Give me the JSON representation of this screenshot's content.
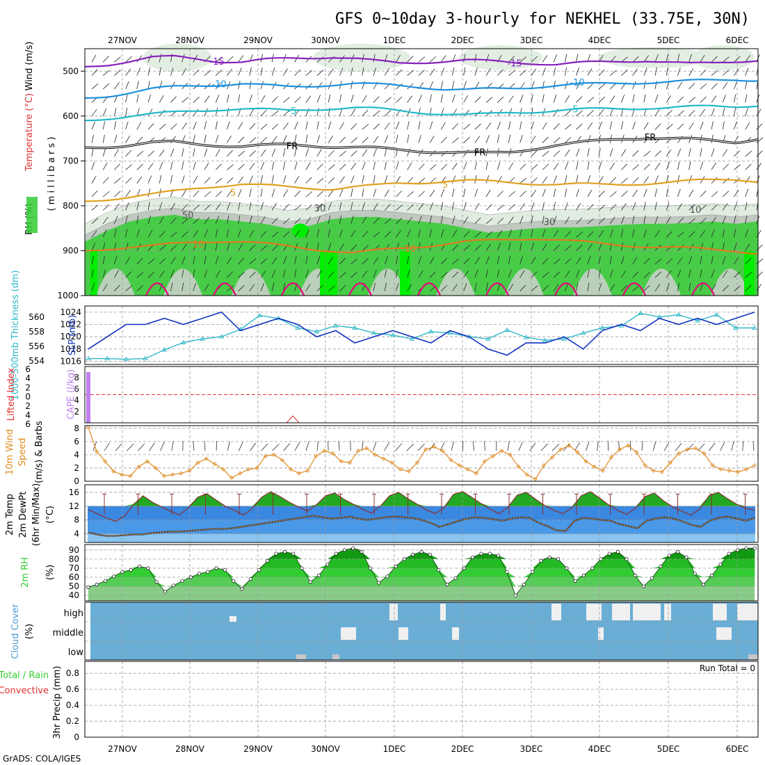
{
  "title": "GFS 0~10day 3-hourly for NEKHEL (33.75E, 30N)",
  "credit": "GrADS: COLA/IGES",
  "colors": {
    "rh_green": "#33cc33",
    "rh_bright": "#00ee00",
    "rh_grey": "#c0c8c0",
    "rh_light": "#e0ece0",
    "t_minus15": "#8822bb",
    "t_minus10": "#1e90dd",
    "t_minus5": "#22b8c8",
    "t_fr": "#000000",
    "t_plus5": "#e0a020",
    "t_plus10": "#e07a20",
    "t_plus15": "#e0107a",
    "slp": "#1030c0",
    "thickness": "#30b8c8",
    "cape": "#c080f0",
    "lifted": "#e03030",
    "wind10": "#e08a20",
    "temp_hot": "#22a822",
    "temp_band": "#3a88e0",
    "temp_light": "#8ac4f0",
    "cloud_blue": "#6aaed6",
    "cloud_grey": "#f0f0f0"
  },
  "chart_data": {
    "type": "meteogram",
    "days": [
      "27NOV",
      "28NOV",
      "29NOV",
      "30NOV",
      "1DEC",
      "2DEC",
      "3DEC",
      "4DEC",
      "5DEC",
      "6DEC"
    ],
    "panels": [
      {
        "id": "upper-air",
        "ylabel_parts": [
          "RH (%)",
          "Temperature (°C)",
          "Wind (m/s)"
        ],
        "ylabel2": "( m i l l i b a r s )",
        "yticks": [
          500,
          600,
          700,
          800,
          900,
          1000
        ],
        "yrange": [
          450,
          1000
        ],
        "contour_labels": [
          "-15",
          "-15",
          "-10",
          "-10",
          "-5",
          "-5",
          "FR",
          "FR",
          "FR",
          "5",
          "5",
          "10",
          "10",
          "30",
          "30",
          "50",
          "10"
        ],
        "isotherms": [
          {
            "name": "-15",
            "p": [
              490,
              485,
              478,
              470,
              468,
              472,
              478,
              480,
              475,
              472,
              470,
              468,
              472,
              478,
              482,
              480,
              478,
              476,
              478,
              480,
              482,
              485,
              482,
              480,
              478,
              476,
              480,
              484,
              482,
              478,
              475
            ]
          },
          {
            "name": "-10",
            "p": [
              560,
              555,
              548,
              540,
              535,
              532,
              530,
              528,
              532,
              535,
              533,
              530,
              528,
              530,
              532,
              535,
              540,
              542,
              540,
              538,
              535,
              532,
              530,
              528,
              526,
              525,
              524,
              522,
              520,
              518,
              520
            ]
          },
          {
            "name": "-5",
            "p": [
              610,
              605,
              600,
              596,
              592,
              588,
              585,
              584,
              586,
              588,
              585,
              583,
              582,
              584,
              588,
              592,
              595,
              598,
              596,
              592,
              590,
              588,
              586,
              584,
              583,
              582,
              582,
              580,
              578,
              578,
              576
            ]
          },
          {
            "name": "FR",
            "p": [
              670,
              668,
              665,
              660,
              658,
              662,
              665,
              668,
              666,
              664,
              665,
              668,
              670,
              672,
              675,
              678,
              680,
              682,
              683,
              680,
              672,
              665,
              660,
              655,
              650,
              648,
              650,
              652,
              655,
              658,
              650
            ]
          },
          {
            "name": "5",
            "p": [
              790,
              785,
              780,
              775,
              768,
              760,
              755,
              752,
              755,
              758,
              760,
              762,
              758,
              755,
              750,
              748,
              745,
              744,
              746,
              748,
              750,
              752,
              752,
              753,
              752,
              750,
              748,
              745,
              742,
              740,
              745
            ]
          },
          {
            "name": "10",
            "p": [
              900,
              895,
              892,
              890,
              885,
              880,
              878,
              880,
              885,
              890,
              895,
              900,
              905,
              900,
              895,
              890,
              885,
              880,
              878,
              875,
              872,
              875,
              880,
              885,
              888,
              890,
              892,
              895,
              898,
              900,
              905
            ]
          }
        ],
        "rh_top_p": [
          880,
          855,
          835,
          825,
          820,
          830,
          830,
          835,
          840,
          850,
          845,
          830,
          825,
          825,
          830,
          835,
          840,
          850,
          860,
          855,
          850,
          848,
          848,
          845,
          842,
          840,
          840,
          838,
          835,
          840,
          835
        ]
      },
      {
        "id": "slp-thickness",
        "ylabel_left": "1000-500mb Thickness (dm)",
        "ylabel_right": "SLP (mb)",
        "yticks_left": [
          554,
          556,
          558,
          560
        ],
        "yticks_right": [
          1016,
          1018,
          1020,
          1022,
          1024
        ],
        "slp": [
          1018,
          1020,
          1022,
          1022,
          1023,
          1022,
          1023,
          1024,
          1021,
          1022,
          1023,
          1022,
          1020,
          1021,
          1019,
          1020,
          1021,
          1020,
          1019,
          1021,
          1020,
          1018,
          1017,
          1019,
          1019,
          1020,
          1018,
          1021,
          1022,
          1021,
          1023,
          1022,
          1023,
          1022,
          1023,
          1024
        ],
        "thickness": [
          554.3,
          554.3,
          554.2,
          554.3,
          555.5,
          556.5,
          557.0,
          557.3,
          558.3,
          560.2,
          559.8,
          558.5,
          558.0,
          558.8,
          558.5,
          557.8,
          557.5,
          557.0,
          558.0,
          557.8,
          557.3,
          557.0,
          558.2,
          557.2,
          556.8,
          557.0,
          557.8,
          558.5,
          558.8,
          560.5,
          560.0,
          560.3,
          559.5,
          560.3,
          558.5,
          558.5
        ]
      },
      {
        "id": "cape-li",
        "ylabel_left": "Lifted Index",
        "ylabel_right": "CAPE (J/kg)",
        "yticks_left": [
          6,
          4,
          2,
          0,
          2,
          4,
          6
        ],
        "yticks_right": [
          2,
          4,
          6,
          8
        ],
        "cape_bar_value": 9,
        "li_spike_label": "2"
      },
      {
        "id": "wind10",
        "ylabel_parts": [
          "10m Wind",
          "Speed",
          "(m/s)",
          "& Barbs"
        ],
        "yticks": [
          0,
          2,
          4,
          6,
          8
        ],
        "speed": [
          8.2,
          4.5,
          3.0,
          1.5,
          1.0,
          0.8,
          2.2,
          3.0,
          2.0,
          0.8,
          1.0,
          1.2,
          1.6,
          2.8,
          3.4,
          2.6,
          1.8,
          0.5,
          1.2,
          1.8,
          2.0,
          3.8,
          4.0,
          3.2,
          1.8,
          1.2,
          1.6,
          3.8,
          4.6,
          4.2,
          3.0,
          2.8,
          4.6,
          5.0,
          4.0,
          3.4,
          2.8,
          1.8,
          1.5,
          2.8,
          4.8,
          5.2,
          4.6,
          3.2,
          2.4,
          1.8,
          1.2,
          3.0,
          3.8,
          4.6,
          4.0,
          2.2,
          1.0,
          0.3,
          2.4,
          3.6,
          4.8,
          5.4,
          4.4,
          3.0,
          2.2,
          1.6,
          3.6,
          4.8,
          5.4,
          4.4,
          2.4,
          1.6,
          1.4,
          2.8,
          4.2,
          4.8,
          5.0,
          4.2,
          2.4,
          1.8,
          1.6,
          1.4,
          1.8,
          2.4
        ]
      },
      {
        "id": "temp",
        "ylabel_parts": [
          "2m Temp",
          "2m DewPt",
          "(6hr Min/Max)",
          "(°C)"
        ],
        "yticks": [
          4,
          8,
          12,
          16
        ],
        "temp": [
          11.0,
          9.8,
          8.6,
          7.6,
          9.2,
          12.6,
          15.0,
          13.2,
          11.8,
          10.6,
          9.4,
          11.6,
          14.6,
          15.6,
          13.8,
          12.0,
          10.8,
          9.4,
          11.4,
          14.6,
          16.2,
          14.8,
          13.2,
          11.8,
          10.6,
          12.4,
          15.0,
          15.8,
          14.0,
          12.6,
          11.2,
          10.0,
          12.0,
          15.0,
          16.0,
          14.2,
          12.6,
          11.0,
          9.8,
          11.6,
          15.4,
          16.2,
          14.6,
          12.8,
          11.2,
          9.8,
          11.8,
          15.2,
          16.0,
          14.0,
          12.2,
          10.8,
          9.8,
          11.6,
          15.0,
          16.2,
          14.4,
          12.4,
          10.8,
          9.6,
          11.6,
          14.8,
          15.8,
          13.6,
          11.8,
          10.6,
          9.4,
          11.2,
          15.0,
          16.0,
          14.2,
          12.6,
          11.4,
          10.8
        ],
        "dewpt": [
          4.4,
          3.8,
          3.4,
          3.4,
          3.6,
          3.8,
          3.8,
          4.2,
          4.4,
          4.6,
          4.6,
          4.8,
          5.0,
          5.2,
          5.4,
          5.4,
          5.6,
          6.0,
          6.4,
          6.8,
          7.2,
          7.6,
          8.0,
          8.4,
          8.8,
          9.2,
          8.8,
          8.4,
          8.6,
          9.0,
          8.4,
          8.0,
          8.4,
          8.8,
          9.0,
          8.8,
          8.6,
          8.0,
          7.2,
          6.0,
          6.8,
          7.6,
          8.4,
          8.8,
          8.6,
          8.2,
          7.8,
          8.4,
          8.8,
          8.6,
          7.2,
          6.2,
          5.0,
          4.8,
          7.8,
          8.6,
          8.4,
          8.0,
          7.8,
          6.8,
          6.2,
          5.6,
          7.8,
          8.4,
          8.8,
          8.4,
          7.6,
          6.6,
          6.0,
          7.8,
          8.6,
          9.0,
          8.4,
          7.8,
          8.6
        ]
      },
      {
        "id": "rh2m",
        "ylabel_parts": [
          "2m RH",
          "(%)"
        ],
        "yticks": [
          40,
          50,
          60,
          70,
          80,
          90
        ],
        "rh": [
          49,
          52,
          56,
          61,
          66,
          68,
          72,
          70,
          55,
          44,
          51,
          56,
          60,
          64,
          66,
          70,
          68,
          56,
          47,
          58,
          68,
          78,
          86,
          88,
          86,
          70,
          55,
          62,
          74,
          86,
          90,
          92,
          88,
          70,
          54,
          61,
          72,
          80,
          85,
          88,
          85,
          68,
          52,
          59,
          70,
          82,
          86,
          86,
          84,
          66,
          40,
          52,
          66,
          78,
          82,
          80,
          70,
          56,
          62,
          70,
          80,
          86,
          88,
          80,
          62,
          50,
          59,
          72,
          84,
          88,
          82,
          64,
          52,
          62,
          74,
          86,
          90,
          92,
          92
        ]
      },
      {
        "id": "cloud",
        "ylabel_parts": [
          "Cloud Cover",
          "(%)"
        ],
        "levels": [
          "high",
          "middle",
          "low"
        ]
      },
      {
        "id": "precip",
        "ylabel_parts": [
          "Total / Rain",
          "Convective",
          "3hr Precip (mm)"
        ],
        "yticks": [
          0,
          0.2,
          0.4,
          0.6,
          0.8
        ],
        "run_total_label": "Run Total = 0"
      }
    ]
  }
}
